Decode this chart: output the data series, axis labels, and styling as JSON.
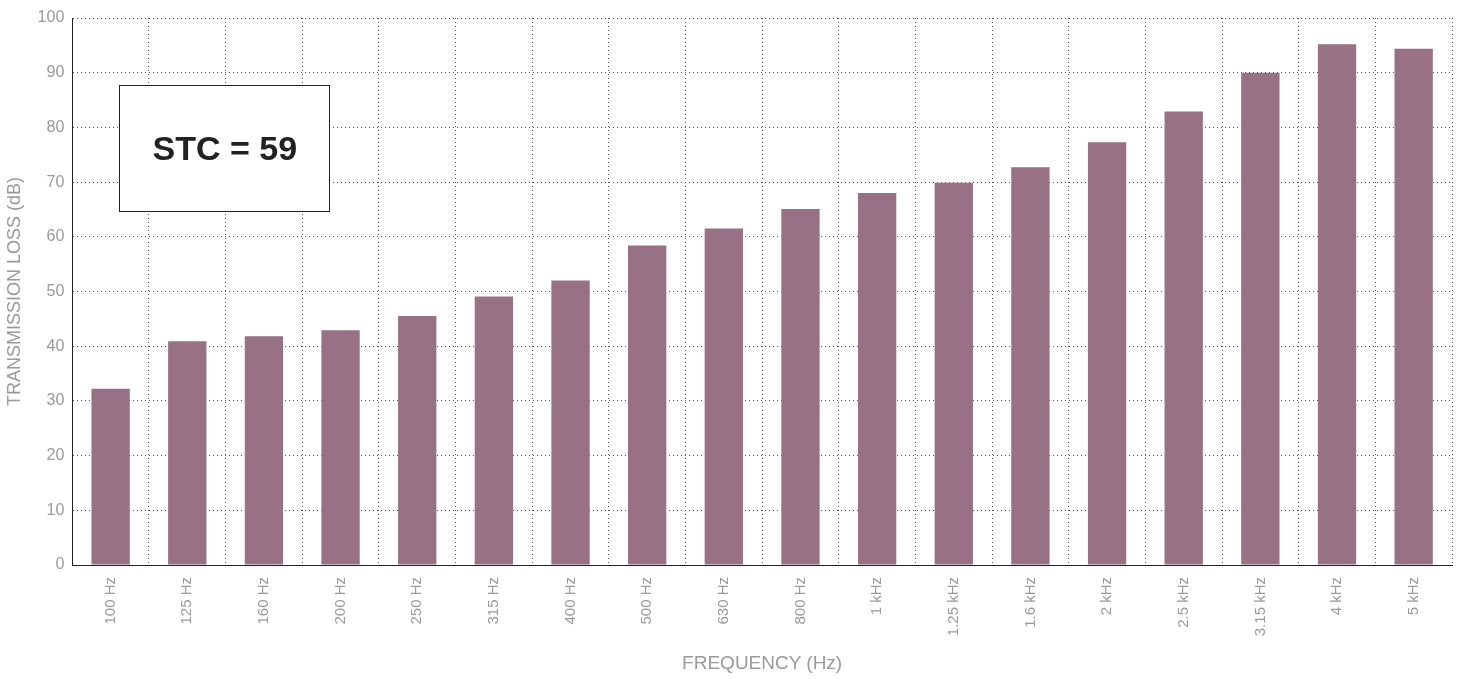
{
  "chart_data": {
    "type": "bar",
    "xlabel": "FREQUENCY (Hz)",
    "ylabel": "TRANSMISSION LOSS (dB)",
    "categories": [
      "100 Hz",
      "125 Hz",
      "160 Hz",
      "200 Hz",
      "250 Hz",
      "315 Hz",
      "400 Hz",
      "500 Hz",
      "630 Hz",
      "800 Hz",
      "1 kHz",
      "1.25 kHz",
      "1.6 kHz",
      "2 kHz",
      "2.5 kHz",
      "3.15 kHz",
      "4 kHz",
      "5 kHz"
    ],
    "values": [
      32.2,
      40.9,
      41.8,
      42.9,
      45.5,
      49.1,
      52.0,
      58.4,
      61.5,
      65.1,
      68.0,
      69.9,
      72.7,
      77.3,
      82.9,
      90.0,
      95.2,
      94.4
    ],
    "color": "#987284",
    "ylim": [
      0,
      100
    ],
    "yticks": [
      0,
      10,
      20,
      30,
      40,
      50,
      60,
      70,
      80,
      90,
      100
    ],
    "grid": true,
    "legend": false,
    "annotations": [
      "STC = 59"
    ]
  }
}
